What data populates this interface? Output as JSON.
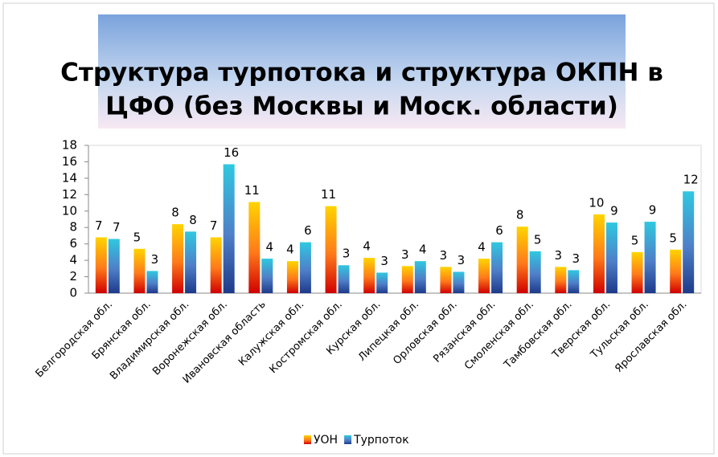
{
  "chart_data": {
    "type": "bar",
    "title": [
      "Структура турпотока и структура ОКПН в",
      "ЦФО (без Москвы и Моск. области)"
    ],
    "categories": [
      "Белгородская обл.",
      "Брянская обл.",
      "Владимирская обл.",
      "Воронежская обл.",
      "Ивановская область",
      "Калужская обл.",
      "Костромская обл.",
      "Курская обл.",
      "Липецкая обл.",
      "Орловская обл.",
      "Рязанская обл.",
      "Смоленская обл.",
      "Тамбовская обл.",
      "Тверская обл.",
      "Тульская обл.",
      "Ярославская обл."
    ],
    "series": [
      {
        "name": "УОН",
        "color": "#ffd400",
        "values": [
          6.8,
          5.4,
          8.4,
          6.8,
          11.1,
          3.9,
          10.6,
          4.3,
          3.3,
          3.2,
          4.2,
          8.1,
          3.2,
          9.6,
          5.0,
          5.3
        ],
        "value_labels": [
          "7",
          "5",
          "8",
          "7",
          "11",
          "4",
          "11",
          "4",
          "3",
          "3",
          "4",
          "8",
          "3",
          "10",
          "5",
          "5"
        ]
      },
      {
        "name": "Турпоток",
        "color": "#2fc8e0",
        "values": [
          6.6,
          2.7,
          7.5,
          15.7,
          4.2,
          6.2,
          3.4,
          2.5,
          3.9,
          2.6,
          6.2,
          5.1,
          2.8,
          8.6,
          8.7,
          12.4
        ],
        "value_labels": [
          "7",
          "3",
          "8",
          "16",
          "4",
          "6",
          "3",
          "3",
          "4",
          "3",
          "6",
          "5",
          "3",
          "9",
          "9",
          "12"
        ]
      }
    ],
    "ylim": [
      0,
      18
    ],
    "yticks": [
      0,
      2,
      4,
      6,
      8,
      10,
      12,
      14,
      16,
      18
    ],
    "legend": "bottom"
  }
}
